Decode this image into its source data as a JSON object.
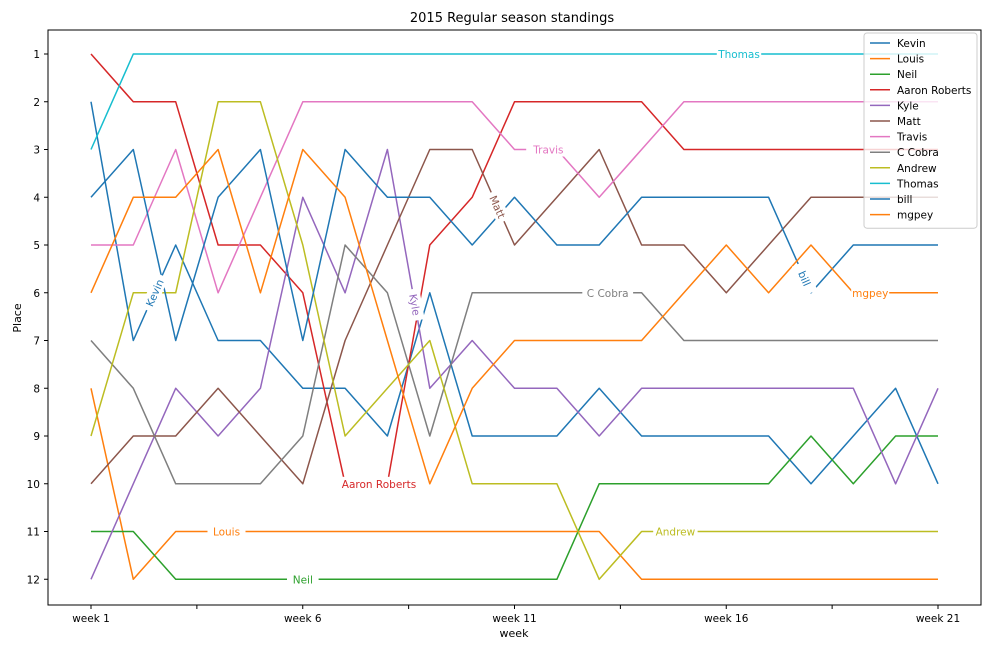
{
  "chart_data": {
    "type": "line",
    "title": "2015 Regular season standings",
    "xlabel": "week",
    "ylabel": "Place",
    "x": [
      "week 1",
      "week 2",
      "week 3",
      "week 4",
      "week 5",
      "week 6",
      "week 7",
      "week 8",
      "week 9",
      "week 10",
      "week 11",
      "week 12",
      "week 13",
      "week 14",
      "week 15",
      "week 16",
      "week 17",
      "week 18",
      "week 19",
      "week 20",
      "week 21"
    ],
    "xtick_labels": [
      "week 1",
      "week 6",
      "week 11",
      "week 16",
      "week 21"
    ],
    "yticks": [
      1,
      2,
      3,
      4,
      5,
      6,
      7,
      8,
      9,
      10,
      11,
      12
    ],
    "ylim": [
      12.5,
      0.5
    ],
    "ylim_note": "inverted axis: place 1 at top",
    "grid": false,
    "legend_position": "top-right",
    "series": [
      {
        "name": "Kevin",
        "color": "#1f77b4",
        "values": [
          2,
          7,
          5,
          7,
          7,
          8,
          8,
          9,
          6,
          9,
          9,
          9,
          8,
          9,
          9,
          9,
          9,
          10,
          9,
          8,
          10
        ],
        "label_week": 2.5
      },
      {
        "name": "Louis",
        "color": "#ff7f0e",
        "values": [
          8,
          12,
          11,
          11,
          11,
          11,
          11,
          11,
          11,
          11,
          11,
          11,
          11,
          12,
          12,
          12,
          12,
          12,
          12,
          12,
          12
        ],
        "label_week": 4.2
      },
      {
        "name": "Neil",
        "color": "#2ca02c",
        "values": [
          11,
          11,
          12,
          12,
          12,
          12,
          12,
          12,
          12,
          12,
          12,
          12,
          10,
          10,
          10,
          10,
          10,
          9,
          10,
          9,
          9
        ],
        "label_week": 6.0
      },
      {
        "name": "Aaron Roberts",
        "color": "#d62728",
        "values": [
          1,
          2,
          2,
          5,
          5,
          6,
          10,
          10,
          5,
          4,
          2,
          2,
          2,
          2,
          3,
          3,
          3,
          3,
          3,
          3,
          3
        ],
        "label_week": 7.8
      },
      {
        "name": "Kyle",
        "color": "#9467bd",
        "values": [
          12,
          10,
          8,
          9,
          8,
          4,
          6,
          3,
          8,
          7,
          8,
          8,
          9,
          8,
          8,
          8,
          8,
          8,
          8,
          10,
          8
        ],
        "label_week": 8.65
      },
      {
        "name": "Matt",
        "color": "#8c564b",
        "values": [
          10,
          9,
          9,
          8,
          9,
          10,
          7,
          5,
          3,
          3,
          5,
          4,
          3,
          5,
          5,
          6,
          5,
          4,
          4,
          4,
          4
        ],
        "label_week": 10.6
      },
      {
        "name": "Travis",
        "color": "#e377c2",
        "values": [
          5,
          5,
          3,
          6,
          4,
          2,
          2,
          2,
          2,
          2,
          3,
          3,
          4,
          3,
          2,
          2,
          2,
          2,
          2,
          2,
          2
        ],
        "label_week": 11.8
      },
      {
        "name": "C Cobra",
        "color": "#7f7f7f",
        "values": [
          7,
          8,
          10,
          10,
          10,
          9,
          5,
          6,
          9,
          6,
          6,
          6,
          6,
          6,
          7,
          7,
          7,
          7,
          7,
          7,
          7
        ],
        "label_week": 13.2
      },
      {
        "name": "Andrew",
        "color": "#bcbd22",
        "values": [
          9,
          6,
          6,
          2,
          2,
          5,
          9,
          8,
          7,
          10,
          10,
          10,
          12,
          11,
          11,
          11,
          11,
          11,
          11,
          11,
          11
        ],
        "label_week": 14.8
      },
      {
        "name": "Thomas",
        "color": "#17becf",
        "values": [
          3,
          1,
          1,
          1,
          1,
          1,
          1,
          1,
          1,
          1,
          1,
          1,
          1,
          1,
          1,
          1,
          1,
          1,
          1,
          1,
          1
        ],
        "label_week": 16.3
      },
      {
        "name": "bill",
        "color": "#1f77b4",
        "values": [
          4,
          3,
          7,
          4,
          3,
          7,
          3,
          4,
          4,
          5,
          4,
          5,
          5,
          4,
          4,
          4,
          4,
          6,
          5,
          5,
          5
        ],
        "label_week": 17.85
      },
      {
        "name": "mgpey",
        "color": "#ff7f0e",
        "values": [
          6,
          4,
          4,
          3,
          6,
          3,
          4,
          7,
          10,
          8,
          7,
          7,
          7,
          7,
          6,
          5,
          6,
          5,
          6,
          6,
          6
        ],
        "label_week": 19.4
      }
    ]
  }
}
